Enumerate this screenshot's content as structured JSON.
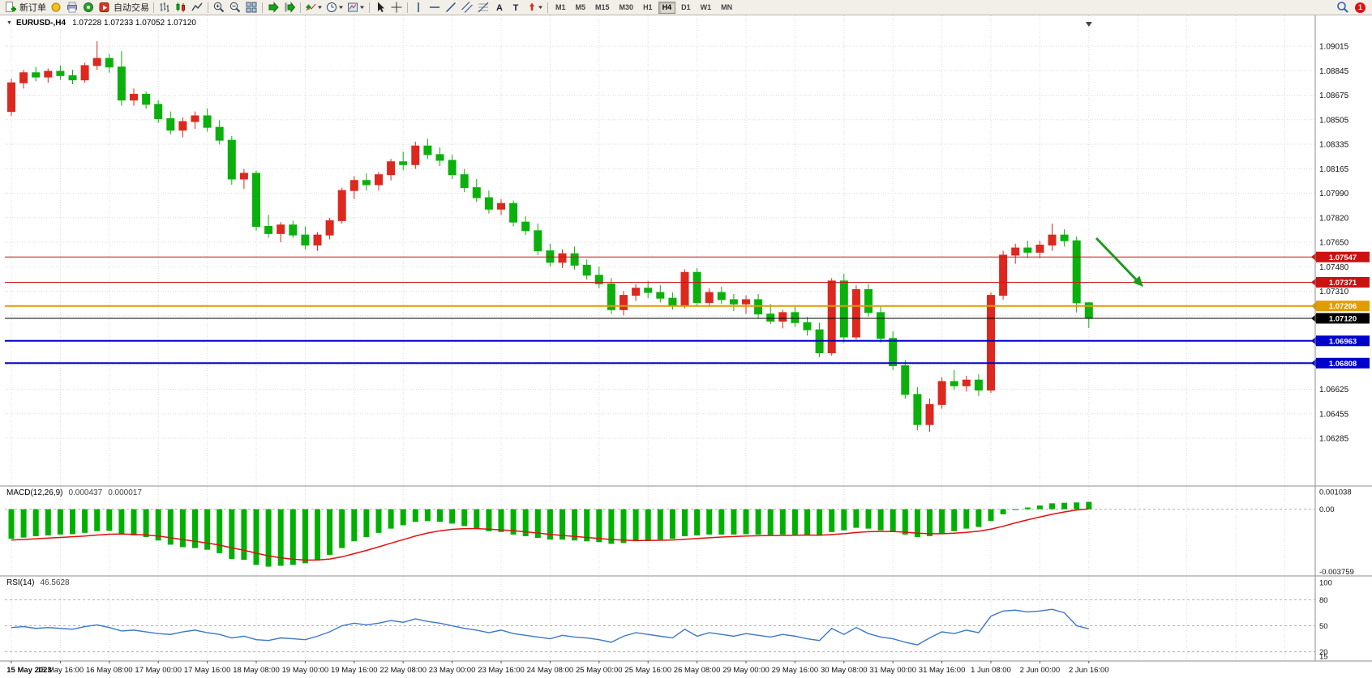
{
  "toolbar": {
    "items": [
      {
        "name": "new-order",
        "label": "新订单"
      },
      {
        "name": "metaeditor"
      },
      {
        "name": "print"
      },
      {
        "name": "data-window"
      },
      {
        "name": "autotrading",
        "label": "自动交易"
      },
      {
        "sep": true
      },
      {
        "name": "bar-chart"
      },
      {
        "name": "candlestick-chart"
      },
      {
        "name": "line-chart"
      },
      {
        "sep": true
      },
      {
        "name": "zoom-in"
      },
      {
        "name": "zoom-out"
      },
      {
        "name": "tile-windows"
      },
      {
        "sep": true
      },
      {
        "name": "auto-scroll"
      },
      {
        "name": "chart-shift"
      },
      {
        "sep": true
      },
      {
        "name": "indicators-dropdown"
      },
      {
        "name": "periods-dropdown"
      },
      {
        "name": "templates-dropdown"
      },
      {
        "sep": true
      },
      {
        "name": "cursor"
      },
      {
        "name": "crosshair"
      },
      {
        "sep": true
      },
      {
        "name": "vertical-line"
      },
      {
        "name": "horizontal-line"
      },
      {
        "name": "trendline"
      },
      {
        "name": "equidistant-channel"
      },
      {
        "name": "fibonacci"
      },
      {
        "name": "text"
      },
      {
        "name": "text-label"
      },
      {
        "name": "arrows-dropdown"
      },
      {
        "sep": true
      }
    ],
    "timeframes": [
      "M1",
      "M5",
      "M15",
      "M30",
      "H1",
      "H4",
      "D1",
      "W1",
      "MN"
    ],
    "active_timeframe": "H4",
    "notification_count": "1"
  },
  "chart": {
    "title_symbol": "EURUSD-,H4",
    "title_ohlc": "1.07228 1.07233 1.07052 1.07120"
  },
  "chart_data": {
    "type": "candlestick",
    "symbol": "EURUSD-",
    "timeframe": "H4",
    "current_candle": {
      "open": 1.07228,
      "high": 1.07233,
      "low": 1.07052,
      "close": 1.0712
    },
    "up_color": "#dc281e",
    "down_color": "#0cb00c",
    "price_axis_range": {
      "top": 1.09015,
      "bottom": 1.06285
    },
    "price_axis_labels": [
      "1.09015",
      "1.08845",
      "1.08675",
      "1.08505",
      "1.08335",
      "1.08165",
      "1.07990",
      "1.07820",
      "1.07650",
      "1.07480",
      "1.07310",
      "1.07140",
      "1.06970",
      "1.06800",
      "1.06625",
      "1.06455",
      "1.06285"
    ],
    "time_labels": [
      "15 May 2023",
      "15 May 16:00",
      "16 May 08:00",
      "17 May 00:00",
      "17 May 16:00",
      "18 May 08:00",
      "19 May 00:00",
      "19 May 16:00",
      "22 May 08:00",
      "23 May 00:00",
      "23 May 16:00",
      "24 May 08:00",
      "25 May 00:00",
      "25 May 16:00",
      "26 May 08:00",
      "29 May 00:00",
      "29 May 16:00",
      "30 May 08:00",
      "31 May 00:00",
      "31 May 16:00",
      "1 Jun 08:00",
      "2 Jun 00:00",
      "2 Jun 16:00"
    ],
    "bars_per_label": 4,
    "candles": [
      [
        1.0856,
        1.0879,
        1.0853,
        1.0876
      ],
      [
        1.0876,
        1.0885,
        1.0872,
        1.0883
      ],
      [
        1.0883,
        1.0887,
        1.0877,
        1.088
      ],
      [
        1.088,
        1.0886,
        1.0876,
        1.0884
      ],
      [
        1.0884,
        1.0888,
        1.0878,
        1.0881
      ],
      [
        1.0881,
        1.0885,
        1.0875,
        1.0878
      ],
      [
        1.0878,
        1.089,
        1.0876,
        1.0888
      ],
      [
        1.0888,
        1.0905,
        1.0885,
        1.0893
      ],
      [
        1.0893,
        1.0896,
        1.0883,
        1.0887
      ],
      [
        1.0887,
        1.0898,
        1.086,
        1.0864
      ],
      [
        1.0864,
        1.0872,
        1.086,
        1.0868
      ],
      [
        1.0868,
        1.087,
        1.0858,
        1.0861
      ],
      [
        1.0861,
        1.0864,
        1.0848,
        1.0851
      ],
      [
        1.0851,
        1.0856,
        1.084,
        1.0843
      ],
      [
        1.0843,
        1.0852,
        1.0838,
        1.0849
      ],
      [
        1.0849,
        1.0856,
        1.0844,
        1.0853
      ],
      [
        1.0853,
        1.0858,
        1.0842,
        1.0845
      ],
      [
        1.0845,
        1.085,
        1.0833,
        1.0836
      ],
      [
        1.0836,
        1.0839,
        1.0805,
        1.0809
      ],
      [
        1.0809,
        1.0816,
        1.0802,
        1.0813
      ],
      [
        1.0813,
        1.0815,
        1.0773,
        1.0776
      ],
      [
        1.0776,
        1.0784,
        1.0768,
        1.0771
      ],
      [
        1.0771,
        1.0779,
        1.0765,
        1.0777
      ],
      [
        1.0777,
        1.078,
        1.0768,
        1.077
      ],
      [
        1.077,
        1.0776,
        1.076,
        1.0763
      ],
      [
        1.0763,
        1.0772,
        1.0759,
        1.077
      ],
      [
        1.077,
        1.0782,
        1.0767,
        1.078
      ],
      [
        1.078,
        1.0803,
        1.0778,
        1.0801
      ],
      [
        1.0801,
        1.0811,
        1.0795,
        1.0808
      ],
      [
        1.0808,
        1.0813,
        1.0801,
        1.0805
      ],
      [
        1.0805,
        1.0814,
        1.0801,
        1.0812
      ],
      [
        1.0812,
        1.0823,
        1.0808,
        1.0821
      ],
      [
        1.0821,
        1.0828,
        1.0815,
        1.0819
      ],
      [
        1.0819,
        1.0835,
        1.0816,
        1.0832
      ],
      [
        1.0832,
        1.0837,
        1.0823,
        1.0826
      ],
      [
        1.0826,
        1.0831,
        1.0818,
        1.0822
      ],
      [
        1.0822,
        1.0826,
        1.0809,
        1.0812
      ],
      [
        1.0812,
        1.0816,
        1.08,
        1.0803
      ],
      [
        1.0803,
        1.0809,
        1.0793,
        1.0796
      ],
      [
        1.0796,
        1.0801,
        1.0785,
        1.0788
      ],
      [
        1.0788,
        1.0795,
        1.0784,
        1.0792
      ],
      [
        1.0792,
        1.0794,
        1.0776,
        1.0779
      ],
      [
        1.0779,
        1.0783,
        1.077,
        1.0773
      ],
      [
        1.0773,
        1.0778,
        1.0756,
        1.0759
      ],
      [
        1.0759,
        1.0764,
        1.0748,
        1.0751
      ],
      [
        1.0751,
        1.076,
        1.0747,
        1.0757
      ],
      [
        1.0757,
        1.0762,
        1.0746,
        1.0749
      ],
      [
        1.0749,
        1.0753,
        1.0739,
        1.0742
      ],
      [
        1.0742,
        1.0748,
        1.0733,
        1.0736
      ],
      [
        1.0736,
        1.074,
        1.0715,
        1.0718
      ],
      [
        1.0718,
        1.0731,
        1.0714,
        1.0728
      ],
      [
        1.0728,
        1.0736,
        1.0724,
        1.0733
      ],
      [
        1.0733,
        1.0738,
        1.0726,
        1.073
      ],
      [
        1.073,
        1.0735,
        1.0723,
        1.0726
      ],
      [
        1.0726,
        1.073,
        1.0718,
        1.0721
      ],
      [
        1.0721,
        1.0746,
        1.0719,
        1.0744
      ],
      [
        1.0744,
        1.0747,
        1.072,
        1.0723
      ],
      [
        1.0723,
        1.0733,
        1.072,
        1.073
      ],
      [
        1.073,
        1.0734,
        1.0722,
        1.0725
      ],
      [
        1.0725,
        1.0729,
        1.0717,
        1.0722
      ],
      [
        1.0722,
        1.0728,
        1.0715,
        1.0725
      ],
      [
        1.0725,
        1.0729,
        1.0712,
        1.0715
      ],
      [
        1.0715,
        1.0722,
        1.0708,
        1.071
      ],
      [
        1.071,
        1.0718,
        1.0705,
        1.0716
      ],
      [
        1.0716,
        1.072,
        1.0706,
        1.0709
      ],
      [
        1.0709,
        1.0713,
        1.07,
        1.0704
      ],
      [
        1.0704,
        1.0709,
        1.0685,
        1.0688
      ],
      [
        1.0688,
        1.074,
        1.0686,
        1.0738
      ],
      [
        1.0738,
        1.0743,
        1.0695,
        1.0699
      ],
      [
        1.0699,
        1.0735,
        1.0697,
        1.0732
      ],
      [
        1.0732,
        1.0736,
        1.0713,
        1.0716
      ],
      [
        1.0716,
        1.072,
        1.0695,
        1.0698
      ],
      [
        1.0698,
        1.0703,
        1.0676,
        1.0679
      ],
      [
        1.0679,
        1.0683,
        1.0656,
        1.0659
      ],
      [
        1.0659,
        1.0664,
        1.0634,
        1.0638
      ],
      [
        1.0638,
        1.0656,
        1.0633,
        1.0652
      ],
      [
        1.0652,
        1.0671,
        1.0649,
        1.0668
      ],
      [
        1.0668,
        1.0676,
        1.0662,
        1.0665
      ],
      [
        1.0665,
        1.0672,
        1.0661,
        1.0669
      ],
      [
        1.0669,
        1.0673,
        1.0658,
        1.0662
      ],
      [
        1.0662,
        1.073,
        1.066,
        1.0728
      ],
      [
        1.0728,
        1.0759,
        1.0725,
        1.0756
      ],
      [
        1.0756,
        1.0764,
        1.075,
        1.0761
      ],
      [
        1.0761,
        1.0766,
        1.0754,
        1.0758
      ],
      [
        1.0758,
        1.0766,
        1.0754,
        1.0763
      ],
      [
        1.0763,
        1.0778,
        1.0759,
        1.077
      ],
      [
        1.077,
        1.0774,
        1.0762,
        1.0766
      ],
      [
        1.0766,
        1.0769,
        1.0716,
        1.07228
      ],
      [
        1.07228,
        1.07233,
        1.07052,
        1.0712
      ]
    ],
    "horizontal_lines": [
      {
        "price": 1.07547,
        "label": "1.07547",
        "color": "#cc1111",
        "width": 1
      },
      {
        "price": 1.07371,
        "label": "1.07371",
        "color": "#cc1111",
        "width": 1
      },
      {
        "price": 1.07206,
        "label": "1.07206",
        "color": "#e09c00",
        "width": 2
      },
      {
        "price": 1.0712,
        "label": "1.07120",
        "color": "#000000",
        "width": 1
      },
      {
        "price": 1.06963,
        "label": "1.06963",
        "color": "#0000cc",
        "width": 2
      },
      {
        "price": 1.06808,
        "label": "1.06808",
        "color": "#0000cc",
        "width": 2
      }
    ],
    "annotation_arrow": {
      "color": "#1e9a1e"
    },
    "macd": {
      "label": "MACD(12,26,9)",
      "value_main": "0.000437",
      "value_signal": "0.000017",
      "axis_labels": [
        "0.001038",
        "0.00",
        "-0.003759"
      ],
      "axis_max": 0.001038,
      "axis_min": -0.003759,
      "histogram_color": "#00b000",
      "signal_color": "#e01010",
      "histogram": [
        -0.00175,
        -0.00168,
        -0.0016,
        -0.00155,
        -0.0015,
        -0.00148,
        -0.0014,
        -0.0013,
        -0.00128,
        -0.00145,
        -0.00155,
        -0.00165,
        -0.00185,
        -0.0021,
        -0.00225,
        -0.0023,
        -0.0024,
        -0.0026,
        -0.00295,
        -0.003,
        -0.0033,
        -0.0034,
        -0.00335,
        -0.0033,
        -0.0032,
        -0.003,
        -0.0027,
        -0.0023,
        -0.0019,
        -0.00165,
        -0.0014,
        -0.00115,
        -0.00095,
        -0.00075,
        -0.0007,
        -0.00075,
        -0.00085,
        -0.001,
        -0.00115,
        -0.0013,
        -0.00135,
        -0.0015,
        -0.0016,
        -0.0017,
        -0.0018,
        -0.0018,
        -0.00185,
        -0.0019,
        -0.00195,
        -0.00205,
        -0.002,
        -0.0019,
        -0.00185,
        -0.0018,
        -0.00175,
        -0.0016,
        -0.00155,
        -0.0015,
        -0.0015,
        -0.0015,
        -0.00148,
        -0.0015,
        -0.00152,
        -0.0015,
        -0.0015,
        -0.00152,
        -0.00155,
        -0.00135,
        -0.00125,
        -0.0011,
        -0.00115,
        -0.00125,
        -0.00135,
        -0.0015,
        -0.00165,
        -0.0016,
        -0.00145,
        -0.0013,
        -0.00115,
        -0.00105,
        -0.0007,
        -0.0003,
        -5e-05,
        0.0001,
        0.00022,
        0.00035,
        0.00038,
        0.0004,
        0.000437
      ],
      "signal": [
        -0.00182,
        -0.00179,
        -0.00175,
        -0.00171,
        -0.00167,
        -0.00163,
        -0.00159,
        -0.00153,
        -0.00148,
        -0.00147,
        -0.00149,
        -0.00152,
        -0.00159,
        -0.00169,
        -0.0018,
        -0.0019,
        -0.002,
        -0.00212,
        -0.00229,
        -0.00243,
        -0.0026,
        -0.00276,
        -0.00288,
        -0.00296,
        -0.00301,
        -0.00301,
        -0.00295,
        -0.00282,
        -0.00263,
        -0.00244,
        -0.00223,
        -0.00201,
        -0.0018,
        -0.00159,
        -0.00141,
        -0.00128,
        -0.00119,
        -0.00115,
        -0.00115,
        -0.00118,
        -0.00122,
        -0.00127,
        -0.00134,
        -0.00141,
        -0.00149,
        -0.00155,
        -0.00161,
        -0.00167,
        -0.00173,
        -0.00179,
        -0.00183,
        -0.00185,
        -0.00185,
        -0.00184,
        -0.00182,
        -0.00178,
        -0.00173,
        -0.00169,
        -0.00165,
        -0.00162,
        -0.00159,
        -0.00157,
        -0.00156,
        -0.00155,
        -0.00154,
        -0.00153,
        -0.00154,
        -0.0015,
        -0.00145,
        -0.00138,
        -0.00133,
        -0.00132,
        -0.00132,
        -0.00136,
        -0.00142,
        -0.00145,
        -0.00145,
        -0.00142,
        -0.00137,
        -0.0013,
        -0.00118,
        -0.00101,
        -0.00081,
        -0.00063,
        -0.00046,
        -0.0003,
        -0.00016,
        -5e-05,
        1.7e-05
      ]
    },
    "rsi": {
      "label": "RSI(14)",
      "value": "46.5628",
      "axis_labels": [
        "100",
        "80",
        "50",
        "20",
        "15"
      ],
      "levels": [
        80,
        50,
        20
      ],
      "scale_max": 100,
      "scale_min": 15,
      "line_color": "#3c78c8",
      "values": [
        48,
        49,
        47,
        48,
        47,
        46,
        49,
        51,
        48,
        44,
        45,
        43,
        41,
        40,
        43,
        45,
        42,
        40,
        36,
        38,
        34,
        33,
        36,
        35,
        34,
        38,
        43,
        50,
        53,
        51,
        53,
        56,
        54,
        58,
        55,
        53,
        50,
        47,
        45,
        42,
        45,
        41,
        39,
        37,
        35,
        39,
        37,
        36,
        34,
        31,
        38,
        42,
        40,
        38,
        36,
        46,
        38,
        42,
        40,
        38,
        41,
        39,
        37,
        40,
        38,
        35,
        33,
        47,
        40,
        48,
        41,
        37,
        35,
        31,
        28,
        36,
        43,
        41,
        45,
        42,
        61,
        67,
        68,
        66,
        67,
        69,
        65,
        50,
        46.5628
      ]
    }
  }
}
